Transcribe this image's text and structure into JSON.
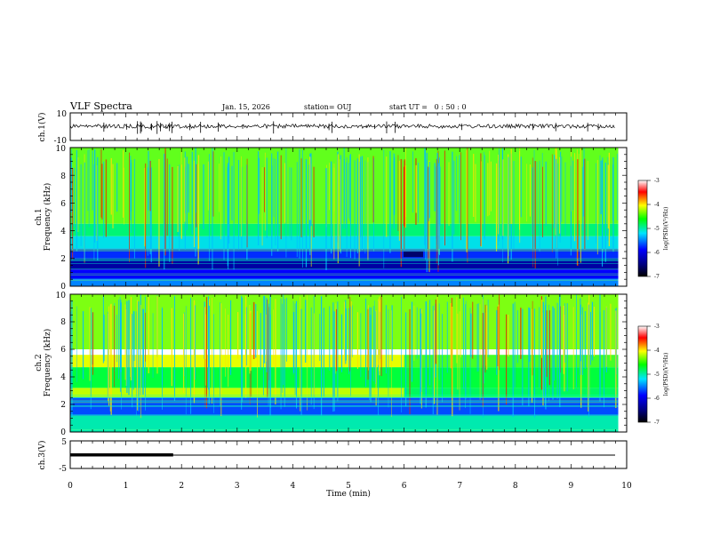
{
  "chart_data": {
    "type": "heatmap",
    "title": "VLF Spectra",
    "date": "Jan. 15, 2026",
    "station": "station= OUJ",
    "start": "start UT =   0 : 50 : 0",
    "xlabel": "Time (min)",
    "x_ticks": [
      "0",
      "1",
      "2",
      "3",
      "4",
      "5",
      "6",
      "7",
      "8",
      "9",
      "10"
    ],
    "xlim": [
      0,
      10
    ],
    "data_end_min": 9.85,
    "panels": [
      {
        "id": "ch1-waveform",
        "ylabel": "ch.1(V)",
        "ylim": [
          -10,
          10
        ],
        "y_ticks": [
          "10",
          "-10"
        ],
        "kind": "waveform"
      },
      {
        "id": "ch1-spectrogram",
        "ylabel": "ch.1 Frequency (kHz)",
        "ylabel_l1": "ch.1",
        "ylabel_l2": "Frequency (kHz)",
        "ylim": [
          0,
          10
        ],
        "y_ticks": [
          "0",
          "2",
          "4",
          "6",
          "8",
          "10"
        ],
        "kind": "spectrogram",
        "colorbar": {
          "label": "log(PSD)(V²/Hz)",
          "range": [
            -7,
            -3
          ],
          "ticks": [
            "-3",
            "-4",
            "-5",
            "-6",
            "-7"
          ]
        }
      },
      {
        "id": "ch2-spectrogram",
        "ylabel": "ch.2 Frequency (kHz)",
        "ylabel_l1": "ch.2",
        "ylabel_l2": "Frequency (kHz)",
        "ylim": [
          0,
          10
        ],
        "y_ticks": [
          "0",
          "2",
          "4",
          "6",
          "8",
          "10"
        ],
        "kind": "spectrogram",
        "colorbar": {
          "label": "log(PSD)(V²/Hz)",
          "range": [
            -7,
            -3
          ],
          "ticks": [
            "-3",
            "-4",
            "-5",
            "-6",
            "-7"
          ]
        }
      },
      {
        "id": "ch3-waveform",
        "ylabel": "ch.3(V)",
        "ylim": [
          -5,
          5
        ],
        "y_ticks": [
          "5",
          "-5"
        ],
        "kind": "waveform"
      }
    ],
    "ch3_thick_segment_end_min": 1.85,
    "ch2_band_change_min": 6.0
  }
}
